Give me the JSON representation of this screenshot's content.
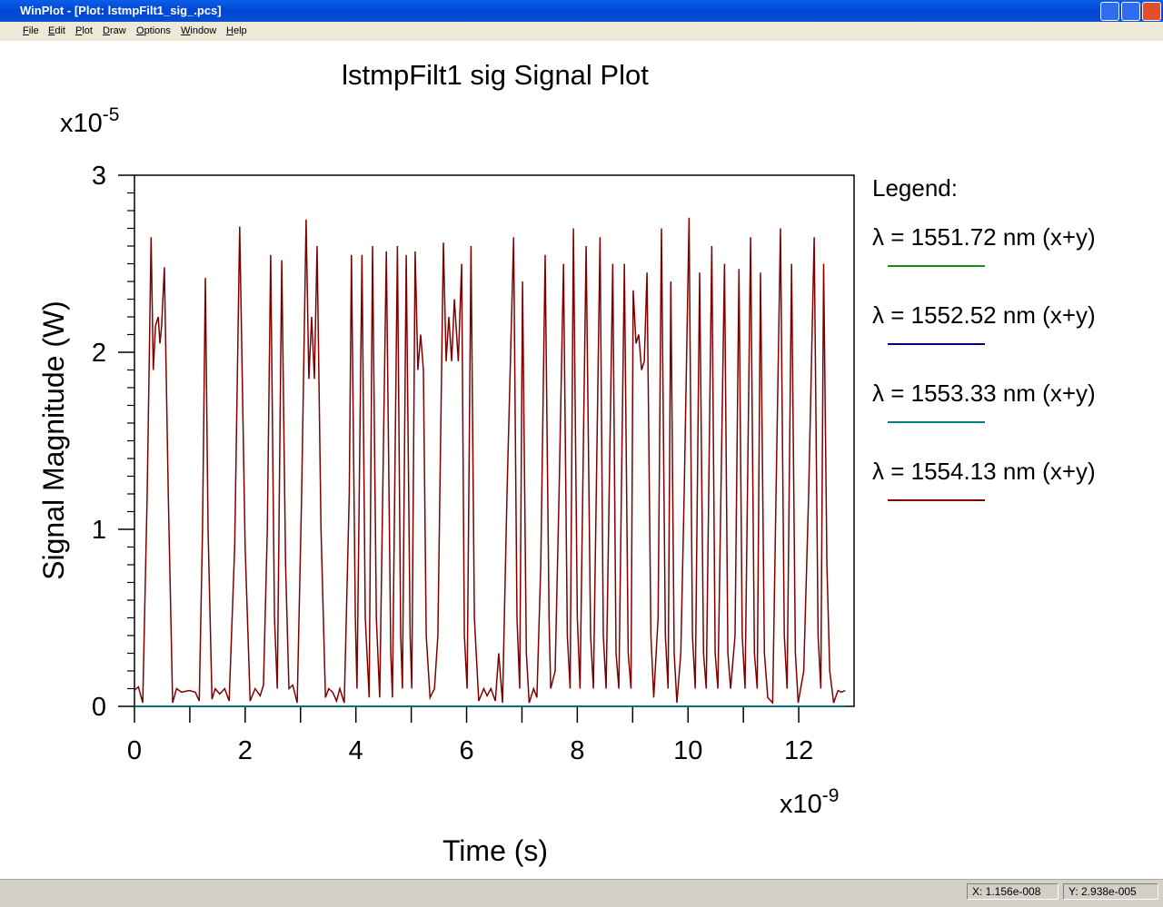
{
  "window": {
    "title": "WinPlot - [Plot: lstmpFilt1_sig_.pcs]"
  },
  "menu": [
    "File",
    "Edit",
    "Plot",
    "Draw",
    "Options",
    "Window",
    "Help"
  ],
  "status": {
    "x": "X: 1.156e-008",
    "y": "Y: 2.938e-005"
  },
  "chart_data": {
    "type": "line",
    "title": "lstmpFilt1 sig  Signal Plot",
    "x_label": "Time (s)",
    "y_label": "Signal Magnitude (W)",
    "x_multiplier": {
      "base": "x10",
      "exponent": "-9"
    },
    "y_multiplier": {
      "base": "x10",
      "exponent": "-5"
    },
    "legend_title": "Legend:",
    "xlim": [
      0,
      13
    ],
    "ylim": [
      0,
      3
    ],
    "xticks": [
      0,
      2,
      4,
      6,
      8,
      10,
      12
    ],
    "yticks": [
      0,
      1,
      2,
      3
    ],
    "xminorticks": [
      1,
      3,
      5,
      7,
      9,
      11
    ],
    "yminorticks": [
      0.1,
      0.2,
      0.3,
      0.4,
      0.5,
      0.6,
      0.7,
      0.8,
      0.9,
      1.1,
      1.2,
      1.3,
      1.4,
      1.5,
      1.6,
      1.7,
      1.8,
      1.9,
      2.1,
      2.2,
      2.3,
      2.4,
      2.5,
      2.6,
      2.7,
      2.8,
      2.9
    ],
    "series": [
      {
        "name": "λ = 1551.72 nm (x+y)",
        "color": "#1a8a1a",
        "x": [
          0,
          12.84
        ],
        "values": [
          0,
          0
        ]
      },
      {
        "name": "λ = 1552.52 nm (x+y)",
        "color": "#000080",
        "x": [
          0,
          12.84
        ],
        "values": [
          0,
          0
        ]
      },
      {
        "name": "λ = 1553.33 nm (x+y)",
        "color": "#008080",
        "x": [
          0,
          12.84
        ],
        "values": [
          0,
          0
        ]
      },
      {
        "name": "λ = 1554.13 nm (x+y)",
        "color": "#800000",
        "x": [
          0,
          0.07,
          0.15,
          0.23,
          0.3,
          0.34,
          0.38,
          0.43,
          0.46,
          0.49,
          0.54,
          0.61,
          0.69,
          0.76,
          0.85,
          0.99,
          1.1,
          1.17,
          1.23,
          1.28,
          1.33,
          1.4,
          1.46,
          1.54,
          1.63,
          1.71,
          1.81,
          1.9,
          2.0,
          2.09,
          2.18,
          2.27,
          2.33,
          2.4,
          2.46,
          2.53,
          2.58,
          2.66,
          2.73,
          2.79,
          2.86,
          2.94,
          3.02,
          3.1,
          3.15,
          3.2,
          3.25,
          3.3,
          3.37,
          3.45,
          3.51,
          3.58,
          3.65,
          3.71,
          3.79,
          3.88,
          3.92,
          3.99,
          4.02,
          4.11,
          4.17,
          4.24,
          4.3,
          4.37,
          4.43,
          4.55,
          4.63,
          4.66,
          4.75,
          4.81,
          4.84,
          4.91,
          4.98,
          5.01,
          5.07,
          5.12,
          5.17,
          5.22,
          5.27,
          5.34,
          5.42,
          5.48,
          5.58,
          5.63,
          5.68,
          5.73,
          5.78,
          5.85,
          5.91,
          5.96,
          6.01,
          6.08,
          6.14,
          6.22,
          6.31,
          6.37,
          6.44,
          6.52,
          6.58,
          6.65,
          6.73,
          6.85,
          6.91,
          6.96,
          7.01,
          7.08,
          7.13,
          7.21,
          7.27,
          7.34,
          7.42,
          7.49,
          7.52,
          7.6,
          7.67,
          7.75,
          7.82,
          7.87,
          7.93,
          8.0,
          8.05,
          8.16,
          8.24,
          8.29,
          8.41,
          8.47,
          8.52,
          8.64,
          8.7,
          8.75,
          8.85,
          8.92,
          8.97,
          9.01,
          9.06,
          9.11,
          9.16,
          9.21,
          9.26,
          9.33,
          9.38,
          9.46,
          9.52,
          9.59,
          9.64,
          9.69,
          9.75,
          9.8,
          9.87,
          9.93,
          10.02,
          10.08,
          10.13,
          10.21,
          10.28,
          10.33,
          10.43,
          10.49,
          10.54,
          10.66,
          10.72,
          10.77,
          10.85,
          10.92,
          10.98,
          11.03,
          11.13,
          11.2,
          11.25,
          11.31,
          11.38,
          11.44,
          11.53,
          11.59,
          11.67,
          11.74,
          11.79,
          11.87,
          11.94,
          11.99,
          12.09,
          12.18,
          12.28,
          12.35,
          12.4,
          12.45,
          12.51,
          12.56,
          12.63,
          12.71,
          12.77,
          12.84
        ],
        "values": [
          0.09,
          0.11,
          0.02,
          1.2,
          2.65,
          1.9,
          2.15,
          2.2,
          2.05,
          2.15,
          2.48,
          1.2,
          0.02,
          0.1,
          0.08,
          0.09,
          0.08,
          0.03,
          1.0,
          2.42,
          1.0,
          0.04,
          0.1,
          0.07,
          0.1,
          0.03,
          0.9,
          2.71,
          0.9,
          0.03,
          0.1,
          0.06,
          0.12,
          1.0,
          2.55,
          0.5,
          0.1,
          2.52,
          0.8,
          0.1,
          0.12,
          0.02,
          1.2,
          2.75,
          1.85,
          2.2,
          1.85,
          2.6,
          1.0,
          0.05,
          0.1,
          0.08,
          0.03,
          0.1,
          0.02,
          1.2,
          2.55,
          0.5,
          0.1,
          2.55,
          0.5,
          0.05,
          2.6,
          0.5,
          0.05,
          2.57,
          0.3,
          0.05,
          2.6,
          0.4,
          0.1,
          2.55,
          0.4,
          0.1,
          2.57,
          1.9,
          2.1,
          1.9,
          0.4,
          0.05,
          0.1,
          0.4,
          2.62,
          1.95,
          2.2,
          1.95,
          2.3,
          1.95,
          2.5,
          0.4,
          0.1,
          2.6,
          0.5,
          0.03,
          0.1,
          0.06,
          0.1,
          0.03,
          0.3,
          0.02,
          1.2,
          2.65,
          0.5,
          0.1,
          2.4,
          0.3,
          0.02,
          0.1,
          0.05,
          0.8,
          2.55,
          0.5,
          0.1,
          0.2,
          1.2,
          2.5,
          0.4,
          0.1,
          2.7,
          0.5,
          0.1,
          2.6,
          0.4,
          0.1,
          2.65,
          0.4,
          0.1,
          2.5,
          0.3,
          0.1,
          2.5,
          0.3,
          0.1,
          2.35,
          2.05,
          2.1,
          1.9,
          1.95,
          2.45,
          0.4,
          0.05,
          0.5,
          2.7,
          0.4,
          0.1,
          2.4,
          0.3,
          0.02,
          0.3,
          1.2,
          2.76,
          0.4,
          0.1,
          2.45,
          0.3,
          0.1,
          2.6,
          0.3,
          0.1,
          2.5,
          0.3,
          0.1,
          0.4,
          2.47,
          0.4,
          0.1,
          2.65,
          0.3,
          0.1,
          2.45,
          0.3,
          0.05,
          0.02,
          1.2,
          2.7,
          0.4,
          0.1,
          2.5,
          0.3,
          0.02,
          0.2,
          1.2,
          2.65,
          0.4,
          0.1,
          2.5,
          0.8,
          0.2,
          0.02,
          0.09,
          0.08,
          0.09
        ]
      }
    ]
  }
}
